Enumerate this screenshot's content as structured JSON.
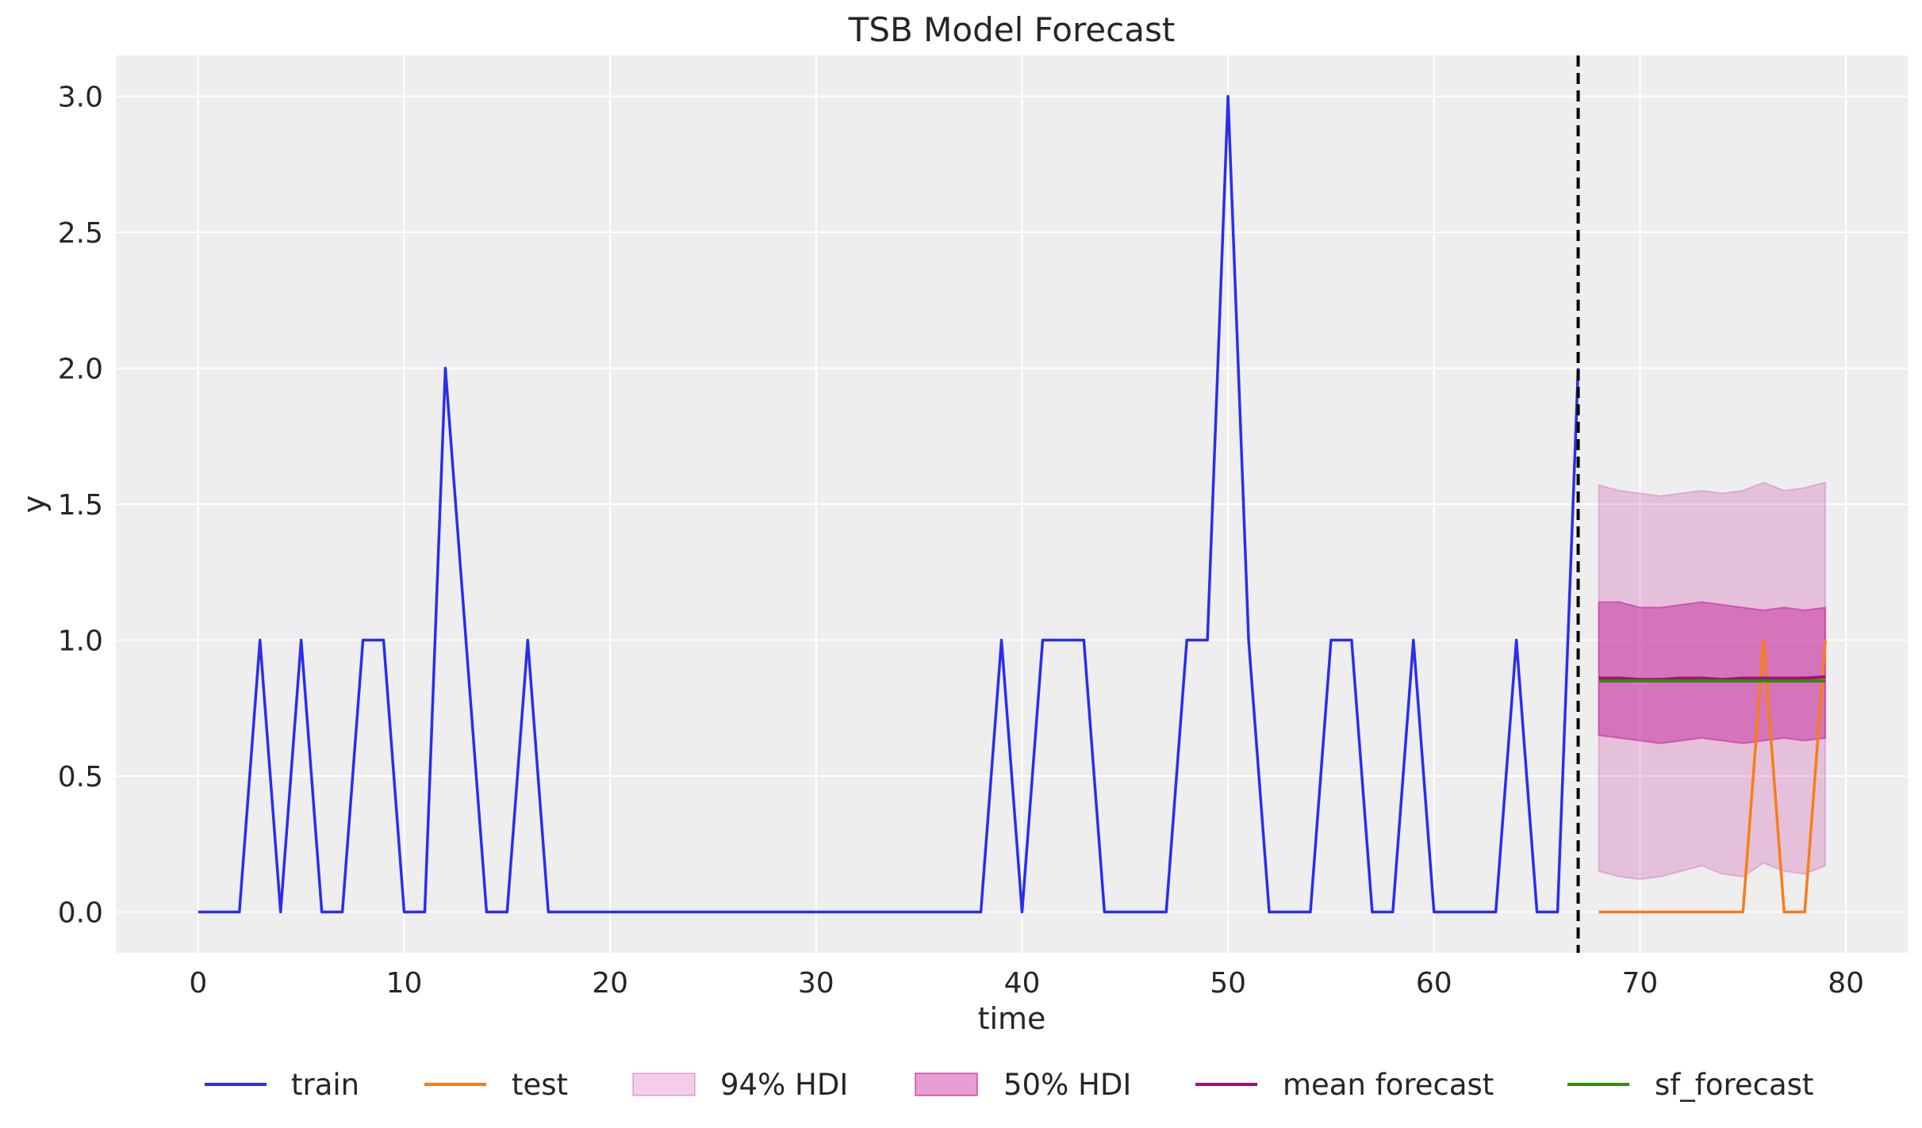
{
  "chart_data": {
    "type": "line",
    "title": "TSB Model Forecast",
    "xlabel": "time",
    "ylabel": "y",
    "xlim": [
      -4,
      83
    ],
    "ylim": [
      -0.15,
      3.15
    ],
    "xticks": [
      0,
      10,
      20,
      30,
      40,
      50,
      60,
      70,
      80
    ],
    "xtick_labels": [
      "0",
      "10",
      "20",
      "30",
      "40",
      "50",
      "60",
      "70",
      "80"
    ],
    "yticks": [
      0.0,
      0.5,
      1.0,
      1.5,
      2.0,
      2.5,
      3.0
    ],
    "ytick_labels": [
      "0.0",
      "0.5",
      "1.0",
      "1.5",
      "2.0",
      "2.5",
      "3.0"
    ],
    "grid": true,
    "legend_placement": "bottom-center",
    "vline_x": 67,
    "train": {
      "name": "train",
      "color": "#2a2eec",
      "x": [
        0,
        1,
        2,
        3,
        4,
        5,
        6,
        7,
        8,
        9,
        10,
        11,
        12,
        13,
        14,
        15,
        16,
        17,
        18,
        19,
        20,
        21,
        22,
        23,
        24,
        25,
        26,
        27,
        28,
        29,
        30,
        31,
        32,
        33,
        34,
        35,
        36,
        37,
        38,
        39,
        40,
        41,
        42,
        43,
        44,
        45,
        46,
        47,
        48,
        49,
        50,
        51,
        52,
        53,
        54,
        55,
        56,
        57,
        58,
        59,
        60,
        61,
        62,
        63,
        64,
        65,
        66,
        67
      ],
      "y": [
        0,
        0,
        0,
        1,
        0,
        1,
        0,
        0,
        1,
        1,
        0,
        0,
        2,
        1,
        0,
        0,
        1,
        0,
        0,
        0,
        0,
        0,
        0,
        0,
        0,
        0,
        0,
        0,
        0,
        0,
        0,
        0,
        0,
        0,
        0,
        0,
        0,
        0,
        0,
        1,
        0,
        1,
        1,
        1,
        0,
        0,
        0,
        0,
        1,
        1,
        3,
        1,
        0,
        0,
        0,
        1,
        1,
        0,
        0,
        1,
        0,
        0,
        0,
        0,
        1,
        0,
        0,
        2
      ]
    },
    "test": {
      "name": "test",
      "color": "#fa7c17",
      "x": [
        68,
        69,
        70,
        71,
        72,
        73,
        74,
        75,
        76,
        77,
        78,
        79
      ],
      "y": [
        0,
        0,
        0,
        0,
        0,
        0,
        0,
        0,
        1,
        0,
        0,
        1
      ]
    },
    "hdi_94": {
      "name": "94% HDI",
      "color": "#c10c90",
      "x": [
        68,
        69,
        70,
        71,
        72,
        73,
        74,
        75,
        76,
        77,
        78,
        79
      ],
      "lower": [
        0.15,
        0.13,
        0.12,
        0.13,
        0.15,
        0.17,
        0.14,
        0.13,
        0.18,
        0.15,
        0.14,
        0.17
      ],
      "upper": [
        1.57,
        1.55,
        1.54,
        1.53,
        1.54,
        1.55,
        1.54,
        1.55,
        1.58,
        1.55,
        1.56,
        1.58
      ]
    },
    "hdi_50": {
      "name": "50% HDI",
      "color": "#c10c90",
      "x": [
        68,
        69,
        70,
        71,
        72,
        73,
        74,
        75,
        76,
        77,
        78,
        79
      ],
      "lower": [
        0.65,
        0.64,
        0.63,
        0.62,
        0.63,
        0.64,
        0.63,
        0.62,
        0.63,
        0.64,
        0.63,
        0.64
      ],
      "upper": [
        1.14,
        1.14,
        1.12,
        1.12,
        1.13,
        1.14,
        1.13,
        1.12,
        1.11,
        1.12,
        1.11,
        1.12
      ]
    },
    "mean_forecast": {
      "name": "mean forecast",
      "color": "#a0107e",
      "x": [
        68,
        69,
        70,
        71,
        72,
        73,
        74,
        75,
        76,
        77,
        78,
        79
      ],
      "y": [
        0.86,
        0.86,
        0.855,
        0.855,
        0.86,
        0.86,
        0.855,
        0.86,
        0.86,
        0.86,
        0.86,
        0.865
      ]
    },
    "sf_forecast": {
      "name": "sf_forecast",
      "color": "#328c06",
      "x": [
        68,
        69,
        70,
        71,
        72,
        73,
        74,
        75,
        76,
        77,
        78,
        79
      ],
      "y": [
        0.85,
        0.85,
        0.85,
        0.85,
        0.85,
        0.85,
        0.85,
        0.85,
        0.85,
        0.85,
        0.85,
        0.85
      ]
    },
    "legend": [
      "train",
      "test",
      "94% HDI",
      "50% HDI",
      "mean forecast",
      "sf_forecast"
    ]
  }
}
